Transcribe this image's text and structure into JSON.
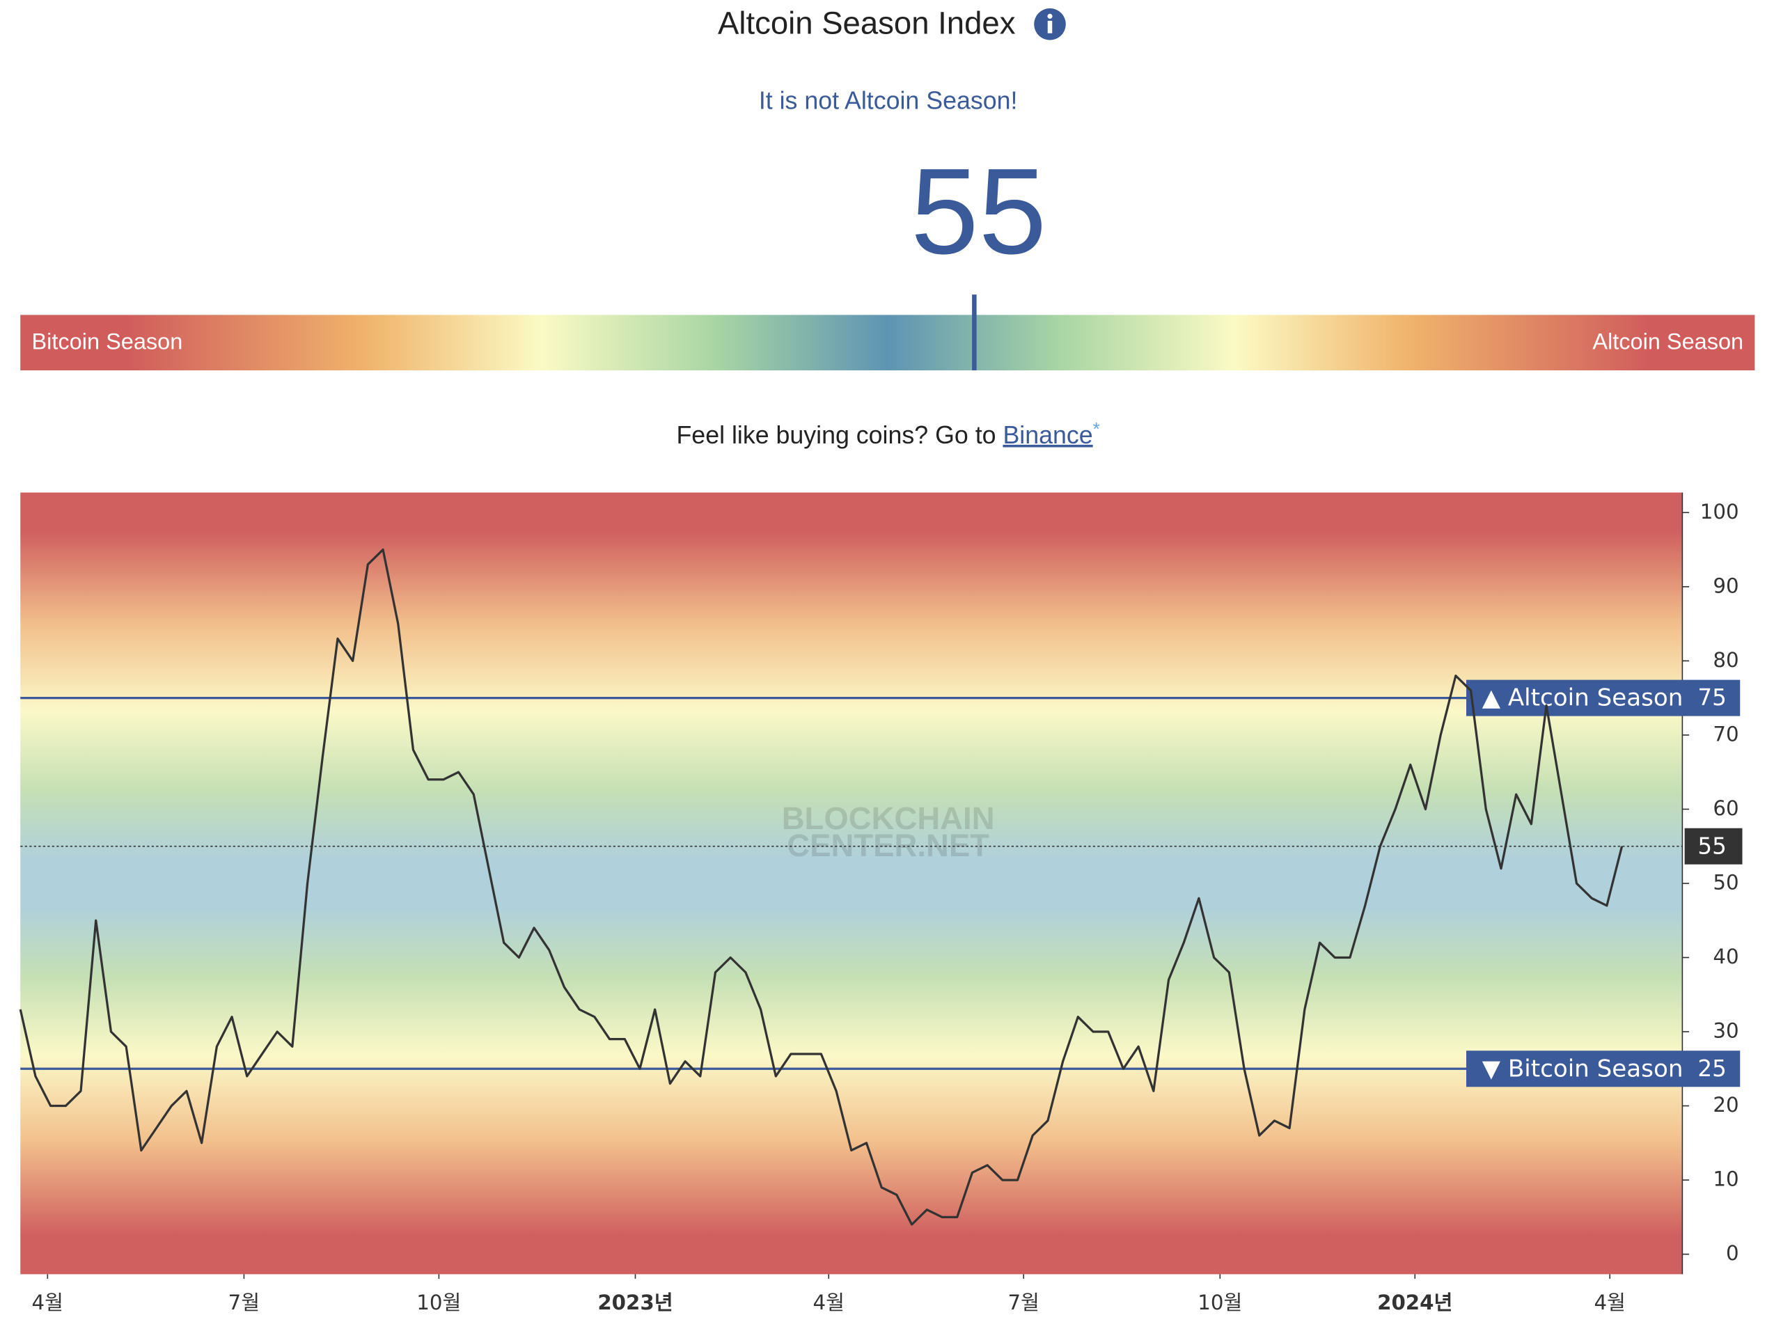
{
  "header": {
    "title": "Altcoin Season Index",
    "status": "It is not Altcoin Season!",
    "index_value": 55,
    "gauge_range": [
      0,
      100
    ],
    "gauge_left_label": "Bitcoin Season",
    "gauge_right_label": "Altcoin Season",
    "promo_text": "Feel like buying coins? Go to ",
    "promo_link": "Binance",
    "promo_mark": "*"
  },
  "chart_data": {
    "type": "line",
    "watermark": [
      "BLOCKCHAIN",
      "CENTER.NET"
    ],
    "x": [
      0,
      1,
      2,
      3,
      4,
      5,
      6,
      7,
      8,
      9,
      10,
      11,
      12,
      13,
      14,
      15,
      16,
      17,
      18,
      19,
      20,
      21,
      22,
      23,
      24,
      25,
      26,
      27,
      28,
      29,
      30,
      31,
      32,
      33,
      34,
      35,
      36,
      37,
      38,
      39,
      40,
      41,
      42,
      43,
      44,
      45,
      46,
      47,
      48,
      49,
      50,
      51,
      52,
      53,
      54,
      55,
      56,
      57,
      58,
      59,
      60,
      61,
      62,
      63,
      64,
      65,
      66,
      67,
      68,
      69,
      70,
      71,
      72,
      73,
      74,
      75,
      76,
      77,
      78,
      79,
      80,
      81,
      82,
      83,
      84,
      85,
      86,
      87,
      88,
      89,
      90,
      91,
      92,
      93,
      94,
      95,
      96,
      97,
      98,
      99,
      100,
      101,
      102,
      103,
      104,
      105,
      106
    ],
    "series": [
      {
        "name": "Altcoin Season Index",
        "color": "#333333",
        "values": [
          33,
          24,
          20,
          20,
          22,
          45,
          30,
          28,
          14,
          17,
          20,
          22,
          15,
          28,
          32,
          24,
          27,
          30,
          28,
          50,
          67,
          83,
          80,
          93,
          95,
          85,
          68,
          64,
          64,
          65,
          62,
          52,
          42,
          40,
          44,
          41,
          36,
          33,
          32,
          29,
          29,
          25,
          33,
          23,
          26,
          24,
          38,
          40,
          38,
          33,
          24,
          27,
          27,
          27,
          22,
          14,
          15,
          9,
          8,
          4,
          6,
          5,
          5,
          11,
          12,
          10,
          10,
          16,
          18,
          26,
          32,
          30,
          30,
          25,
          28,
          22,
          37,
          42,
          48,
          40,
          38,
          25,
          16,
          18,
          17,
          33,
          42,
          40,
          40,
          47,
          55,
          60,
          66,
          60,
          70,
          78,
          76,
          60,
          52,
          62,
          58,
          74,
          62,
          50,
          48,
          47,
          55
        ]
      }
    ],
    "xlim": [
      0,
      110
    ],
    "xticks": [
      {
        "value": 1.8,
        "label": "4월"
      },
      {
        "value": 14.8,
        "label": "7월"
      },
      {
        "value": 27.7,
        "label": "10월"
      },
      {
        "value": 40.7,
        "label": "2023년",
        "bold": true
      },
      {
        "value": 53.5,
        "label": "4월"
      },
      {
        "value": 66.4,
        "label": "7월"
      },
      {
        "value": 79.4,
        "label": "10월"
      },
      {
        "value": 92.3,
        "label": "2024년",
        "bold": true
      },
      {
        "value": 105.2,
        "label": "4월"
      }
    ],
    "ylim": [
      -2.7,
      102.7
    ],
    "yticks": [
      0,
      10,
      20,
      30,
      40,
      50,
      60,
      70,
      80,
      90,
      100
    ],
    "thresholds": [
      {
        "label": "▲ Altcoin Season",
        "value": 75,
        "color": "#3b5a9a"
      },
      {
        "label": "▼ Bitcoin Season",
        "value": 25,
        "color": "#3b5a9a"
      }
    ]
  }
}
